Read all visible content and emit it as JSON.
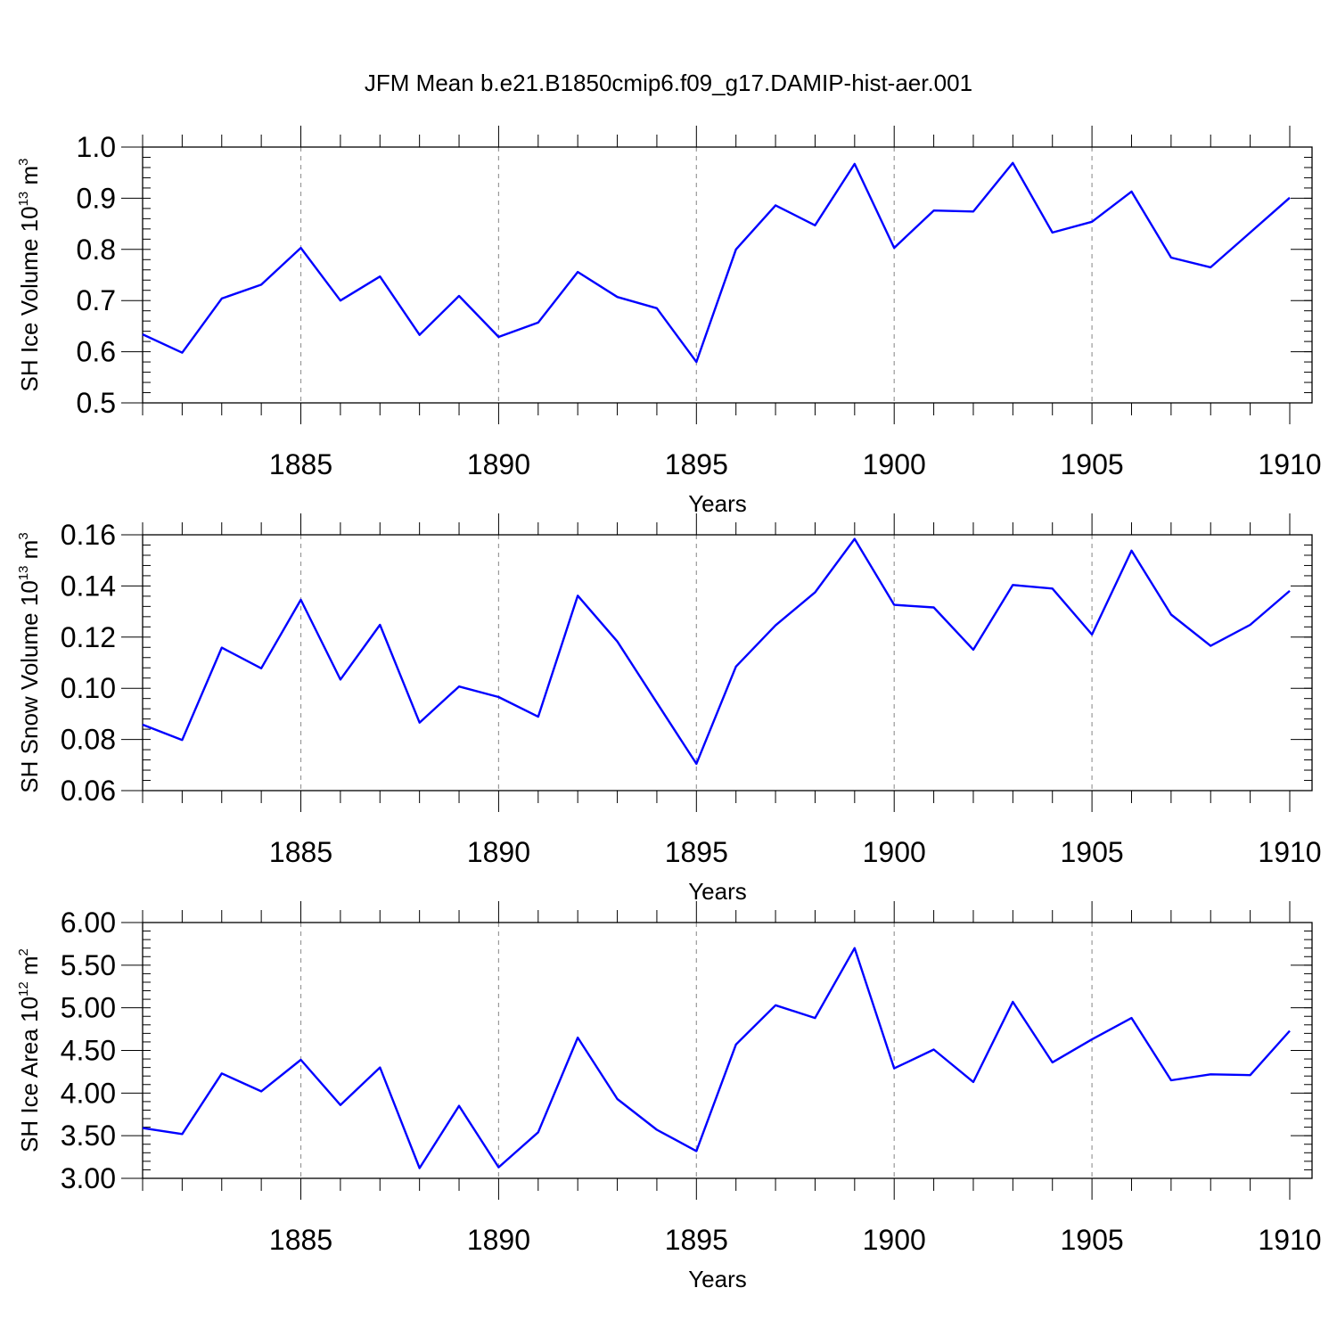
{
  "title": "JFM Mean b.e21.B1850cmip6.f09_g17.DAMIP-hist-aer.001",
  "line_color": "#0000ff",
  "chart_data": [
    {
      "type": "line",
      "ylabel": {
        "pre": "SH Ice Volume 10",
        "exp": "13",
        "mid": " m",
        "unit_exp": "3"
      },
      "xlabel": "Years",
      "xlim": [
        1881,
        1910
      ],
      "ylim": [
        0.5,
        1.0
      ],
      "yticks": [
        0.5,
        0.6,
        0.7,
        0.8,
        0.9,
        1.0
      ],
      "ytick_labels": [
        "0.5",
        "0.6",
        "0.7",
        "0.8",
        "0.9",
        "1.0"
      ],
      "yminor_step": 0.02,
      "xticks": [
        1885,
        1890,
        1895,
        1900,
        1905,
        1910
      ],
      "xtick_labels": [
        "1885",
        "1890",
        "1895",
        "1900",
        "1905",
        "1910"
      ],
      "grid_x": true,
      "x": [
        1881,
        1882,
        1883,
        1884,
        1885,
        1886,
        1887,
        1888,
        1889,
        1890,
        1891,
        1892,
        1893,
        1894,
        1895,
        1896,
        1897,
        1898,
        1899,
        1900,
        1901,
        1902,
        1903,
        1904,
        1905,
        1906,
        1907,
        1908,
        1909,
        1910
      ],
      "y": [
        0.634,
        0.598,
        0.704,
        0.731,
        0.803,
        0.7,
        0.747,
        0.633,
        0.709,
        0.629,
        0.657,
        0.756,
        0.707,
        0.685,
        0.58,
        0.8,
        0.886,
        0.847,
        0.967,
        0.803,
        0.876,
        0.874,
        0.969,
        0.833,
        0.854,
        0.913,
        0.784,
        0.765,
        0.833,
        0.901
      ]
    },
    {
      "type": "line",
      "ylabel": {
        "pre": "SH Snow Volume 10",
        "exp": "13",
        "mid": " m",
        "unit_exp": "3"
      },
      "xlabel": "Years",
      "xlim": [
        1881,
        1910
      ],
      "ylim": [
        0.06,
        0.16
      ],
      "yticks": [
        0.06,
        0.08,
        0.1,
        0.12,
        0.14,
        0.16
      ],
      "ytick_labels": [
        "0.06",
        "0.08",
        "0.10",
        "0.12",
        "0.14",
        "0.16"
      ],
      "yminor_step": 0.004,
      "xticks": [
        1885,
        1890,
        1895,
        1900,
        1905,
        1910
      ],
      "xtick_labels": [
        "1885",
        "1890",
        "1895",
        "1900",
        "1905",
        "1910"
      ],
      "grid_x": true,
      "x": [
        1881,
        1882,
        1883,
        1884,
        1885,
        1886,
        1887,
        1888,
        1889,
        1890,
        1891,
        1892,
        1893,
        1894,
        1895,
        1896,
        1897,
        1898,
        1899,
        1900,
        1901,
        1902,
        1903,
        1904,
        1905,
        1906,
        1907,
        1908,
        1909,
        1910
      ],
      "y": [
        0.0858,
        0.0798,
        0.1159,
        0.1078,
        0.1346,
        0.1034,
        0.1248,
        0.0866,
        0.1007,
        0.0966,
        0.0889,
        0.1362,
        0.1183,
        0.0944,
        0.0705,
        0.1085,
        0.1246,
        0.1375,
        0.1584,
        0.1326,
        0.1316,
        0.1151,
        0.1404,
        0.139,
        0.121,
        0.1538,
        0.1288,
        0.1166,
        0.1248,
        0.1381
      ]
    },
    {
      "type": "line",
      "ylabel": {
        "pre": "SH Ice Area 10",
        "exp": "12",
        "mid": " m",
        "unit_exp": "2"
      },
      "xlabel": "Years",
      "xlim": [
        1881,
        1910
      ],
      "ylim": [
        3.0,
        6.0
      ],
      "yticks": [
        3.0,
        3.5,
        4.0,
        4.5,
        5.0,
        5.5,
        6.0
      ],
      "ytick_labels": [
        "3.00",
        "3.50",
        "4.00",
        "4.50",
        "5.00",
        "5.50",
        "6.00"
      ],
      "yminor_step": 0.1,
      "xticks": [
        1885,
        1890,
        1895,
        1900,
        1905,
        1910
      ],
      "xtick_labels": [
        "1885",
        "1890",
        "1895",
        "1900",
        "1905",
        "1910"
      ],
      "grid_x": true,
      "x": [
        1881,
        1882,
        1883,
        1884,
        1885,
        1886,
        1887,
        1888,
        1889,
        1890,
        1891,
        1892,
        1893,
        1894,
        1895,
        1896,
        1897,
        1898,
        1899,
        1900,
        1901,
        1902,
        1903,
        1904,
        1905,
        1906,
        1907,
        1908,
        1909,
        1910
      ],
      "y": [
        3.59,
        3.52,
        4.23,
        4.02,
        4.39,
        3.86,
        4.3,
        3.12,
        3.85,
        3.13,
        3.54,
        4.65,
        3.93,
        3.57,
        3.32,
        4.57,
        5.03,
        4.88,
        5.7,
        4.29,
        4.51,
        4.13,
        5.07,
        4.36,
        4.63,
        4.88,
        4.15,
        4.22,
        4.21,
        4.73
      ]
    }
  ]
}
